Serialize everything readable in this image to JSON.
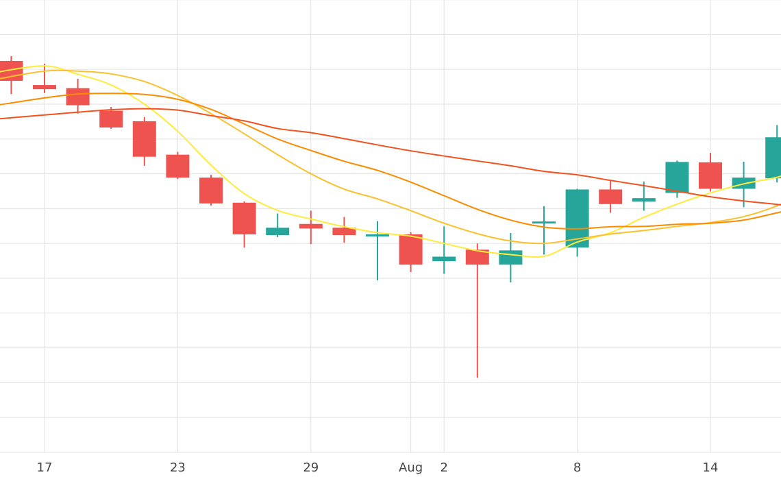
{
  "chart_data": {
    "type": "candlestick",
    "grid": true,
    "x_tick_labels": [
      {
        "label": "17",
        "day": 0
      },
      {
        "label": "23",
        "day": 6
      },
      {
        "label": "29",
        "day": 12
      },
      {
        "label": "Aug",
        "day": 16.5
      },
      {
        "label": "2",
        "day": 18
      },
      {
        "label": "8",
        "day": 24
      },
      {
        "label": "14",
        "day": 30
      }
    ],
    "y_range": [
      0,
      13
    ],
    "x_range": [
      -2.05,
      33.8
    ],
    "colors": {
      "up": "#26a69a",
      "down": "#ef5350",
      "grid": "#e6e6e6",
      "ma_fast": "#ffeb3b",
      "ma_2": "#fbc02d",
      "ma_3": "#fb8c00",
      "ma_slow": "#f4511e"
    },
    "candles": [
      {
        "day": -1.5,
        "open": 11.24,
        "high": 11.38,
        "low": 10.29,
        "close": 10.67
      },
      {
        "day": 0,
        "open": 10.55,
        "high": 11.16,
        "low": 10.32,
        "close": 10.43
      },
      {
        "day": 1.5,
        "open": 10.46,
        "high": 10.73,
        "low": 9.73,
        "close": 9.97
      },
      {
        "day": 3,
        "open": 9.81,
        "high": 9.92,
        "low": 9.29,
        "close": 9.33
      },
      {
        "day": 4.5,
        "open": 9.51,
        "high": 9.63,
        "low": 8.23,
        "close": 8.49
      },
      {
        "day": 6,
        "open": 8.55,
        "high": 8.63,
        "low": 7.85,
        "close": 7.89
      },
      {
        "day": 7.5,
        "open": 7.89,
        "high": 7.97,
        "low": 7.09,
        "close": 7.15
      },
      {
        "day": 9,
        "open": 7.17,
        "high": 7.21,
        "low": 5.88,
        "close": 6.26
      },
      {
        "day": 10.5,
        "open": 6.24,
        "high": 6.86,
        "low": 6.18,
        "close": 6.45
      },
      {
        "day": 12,
        "open": 6.56,
        "high": 6.94,
        "low": 5.98,
        "close": 6.43
      },
      {
        "day": 13.5,
        "open": 6.45,
        "high": 6.76,
        "low": 6.02,
        "close": 6.24
      },
      {
        "day": 15,
        "open": 6.21,
        "high": 6.64,
        "low": 4.94,
        "close": 6.26
      },
      {
        "day": 16.5,
        "open": 6.26,
        "high": 6.32,
        "low": 5.18,
        "close": 5.39
      },
      {
        "day": 18,
        "open": 5.49,
        "high": 6.49,
        "low": 5.13,
        "close": 5.62
      },
      {
        "day": 19.5,
        "open": 5.82,
        "high": 6.0,
        "low": 2.14,
        "close": 5.39
      },
      {
        "day": 21,
        "open": 5.39,
        "high": 6.3,
        "low": 4.88,
        "close": 5.8
      },
      {
        "day": 22.5,
        "open": 6.63,
        "high": 7.07,
        "low": 5.68,
        "close": 6.63
      },
      {
        "day": 24,
        "open": 5.88,
        "high": 7.57,
        "low": 5.62,
        "close": 7.55
      },
      {
        "day": 25.5,
        "open": 7.55,
        "high": 7.81,
        "low": 6.88,
        "close": 7.13
      },
      {
        "day": 27,
        "open": 7.2,
        "high": 7.78,
        "low": 6.94,
        "close": 7.3
      },
      {
        "day": 28.5,
        "open": 7.45,
        "high": 8.38,
        "low": 7.31,
        "close": 8.34
      },
      {
        "day": 30,
        "open": 8.33,
        "high": 8.6,
        "low": 7.49,
        "close": 7.57
      },
      {
        "day": 31.5,
        "open": 7.57,
        "high": 8.35,
        "low": 7.04,
        "close": 7.89
      },
      {
        "day": 33,
        "open": 7.87,
        "high": 9.4,
        "low": 7.75,
        "close": 9.05
      }
    ],
    "moving_averages": [
      {
        "color_key": "ma_fast",
        "points": [
          [
            -2.05,
            10.93
          ],
          [
            0,
            11.1
          ],
          [
            1.5,
            10.86
          ],
          [
            3,
            10.55
          ],
          [
            4.5,
            10.0
          ],
          [
            6,
            9.22
          ],
          [
            7.5,
            8.25
          ],
          [
            9,
            7.43
          ],
          [
            10.5,
            6.95
          ],
          [
            12,
            6.7
          ],
          [
            13.5,
            6.48
          ],
          [
            15,
            6.31
          ],
          [
            16.5,
            6.21
          ],
          [
            18,
            6.0
          ],
          [
            19.5,
            5.79
          ],
          [
            21,
            5.68
          ],
          [
            22.5,
            5.63
          ],
          [
            24,
            6.04
          ],
          [
            25.5,
            6.31
          ],
          [
            27,
            6.75
          ],
          [
            28.5,
            7.13
          ],
          [
            30,
            7.45
          ],
          [
            31.5,
            7.71
          ],
          [
            33,
            7.9
          ],
          [
            33.8,
            8.08
          ]
        ]
      },
      {
        "color_key": "ma_2",
        "points": [
          [
            -2.05,
            10.73
          ],
          [
            0,
            10.95
          ],
          [
            1.5,
            10.95
          ],
          [
            3,
            10.87
          ],
          [
            4.5,
            10.65
          ],
          [
            6,
            10.25
          ],
          [
            7.5,
            9.73
          ],
          [
            9,
            9.15
          ],
          [
            10.5,
            8.55
          ],
          [
            12,
            8.0
          ],
          [
            13.5,
            7.56
          ],
          [
            15,
            7.28
          ],
          [
            16.5,
            6.94
          ],
          [
            18,
            6.58
          ],
          [
            19.5,
            6.28
          ],
          [
            21,
            6.07
          ],
          [
            22.5,
            6.0
          ],
          [
            24,
            6.13
          ],
          [
            25.5,
            6.27
          ],
          [
            27,
            6.37
          ],
          [
            28.5,
            6.49
          ],
          [
            30,
            6.6
          ],
          [
            31.5,
            6.77
          ],
          [
            33,
            7.08
          ],
          [
            33.8,
            7.36
          ]
        ]
      },
      {
        "color_key": "ma_3",
        "points": [
          [
            -2.05,
            9.98
          ],
          [
            0,
            10.18
          ],
          [
            1.5,
            10.29
          ],
          [
            3,
            10.31
          ],
          [
            4.5,
            10.28
          ],
          [
            6,
            10.14
          ],
          [
            7.5,
            9.85
          ],
          [
            9,
            9.43
          ],
          [
            10.5,
            9.0
          ],
          [
            12,
            8.67
          ],
          [
            13.5,
            8.36
          ],
          [
            15,
            8.1
          ],
          [
            16.5,
            7.76
          ],
          [
            18,
            7.37
          ],
          [
            19.5,
            6.98
          ],
          [
            21,
            6.67
          ],
          [
            22.5,
            6.47
          ],
          [
            24,
            6.42
          ],
          [
            25.5,
            6.48
          ],
          [
            27,
            6.49
          ],
          [
            28.5,
            6.55
          ],
          [
            30,
            6.58
          ],
          [
            31.5,
            6.67
          ],
          [
            33,
            6.88
          ],
          [
            33.8,
            7.0
          ]
        ]
      },
      {
        "color_key": "ma_slow",
        "points": [
          [
            -2.05,
            9.58
          ],
          [
            0,
            9.69
          ],
          [
            1.5,
            9.77
          ],
          [
            3,
            9.84
          ],
          [
            4.5,
            9.87
          ],
          [
            6,
            9.83
          ],
          [
            7.5,
            9.67
          ],
          [
            9,
            9.52
          ],
          [
            10.5,
            9.3
          ],
          [
            12,
            9.18
          ],
          [
            13.5,
            9.01
          ],
          [
            15,
            8.83
          ],
          [
            16.5,
            8.66
          ],
          [
            18,
            8.51
          ],
          [
            19.5,
            8.37
          ],
          [
            21,
            8.23
          ],
          [
            22.5,
            8.07
          ],
          [
            24,
            7.97
          ],
          [
            25.5,
            7.81
          ],
          [
            27,
            7.66
          ],
          [
            28.5,
            7.5
          ],
          [
            30,
            7.34
          ],
          [
            31.5,
            7.22
          ],
          [
            33,
            7.12
          ],
          [
            33.8,
            7.05
          ]
        ]
      }
    ]
  }
}
